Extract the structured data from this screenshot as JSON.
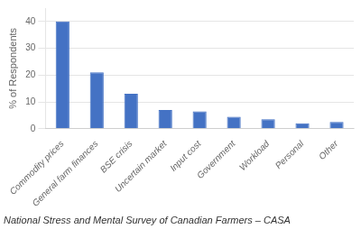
{
  "chart_data": {
    "type": "bar",
    "categories": [
      "Commodity prices",
      "General farm finances",
      "BSE crisis",
      "Uncertain market",
      "Input cost",
      "Government",
      "Workload",
      "Personal",
      "Other"
    ],
    "values": [
      40,
      21,
      13,
      7,
      6.5,
      4.5,
      3.5,
      2,
      2.5
    ],
    "color": "#4472C4",
    "ylabel": "% of Respondents",
    "ylim": [
      0,
      45
    ],
    "yticks": [
      0,
      10,
      20,
      30,
      40
    ],
    "grid": true,
    "caption": "National Stress and Mental Survey of Canadian Farmers – CASA"
  }
}
